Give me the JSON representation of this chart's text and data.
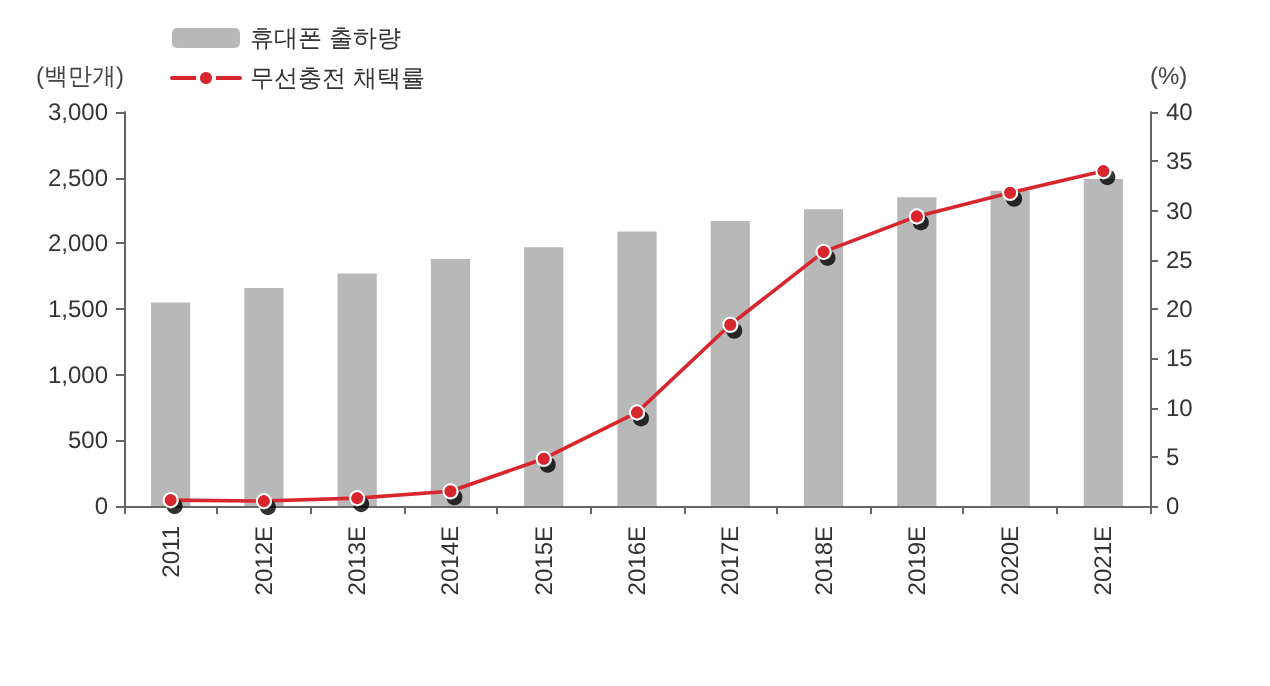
{
  "chart_data": {
    "type": "bar",
    "categories": [
      "2011",
      "2012E",
      "2013E",
      "2014E",
      "2015E",
      "2016E",
      "2017E",
      "2018E",
      "2019E",
      "2020E",
      "2021E"
    ],
    "ylabel": "(백만개)",
    "y2label": "(%)",
    "ylim": [
      0,
      3000
    ],
    "yticks": [
      0,
      {
        "value": 500,
        "label": "500"
      },
      {
        "value": 1000,
        "label": "1,000"
      },
      {
        "value": 1500,
        "label": "1,500"
      },
      {
        "value": 2000,
        "label": "2,000"
      },
      {
        "value": 2500,
        "label": "2,500"
      },
      {
        "value": 3000,
        "label": "3,000"
      }
    ],
    "y2lim": [
      0,
      40
    ],
    "y2ticks": [
      0,
      5,
      10,
      15,
      20,
      25,
      30,
      35,
      40
    ],
    "series": [
      {
        "name": "휴대폰 출하량",
        "color": "#b8b8b8",
        "values": [
          1550,
          1660,
          1770,
          1880,
          1970,
          2090,
          2170,
          2260,
          2350,
          2400,
          2490
        ]
      },
      {
        "name": "무선충전 채택률",
        "type": "line",
        "axis": "y2",
        "color": "#d7262e",
        "marker": "circle",
        "values": [
          0.6,
          0.5,
          0.8,
          1.5,
          4.8,
          9.5,
          18.4,
          25.8,
          29.4,
          31.8,
          34.0
        ]
      }
    ],
    "legend": "top left",
    "grid": false
  }
}
